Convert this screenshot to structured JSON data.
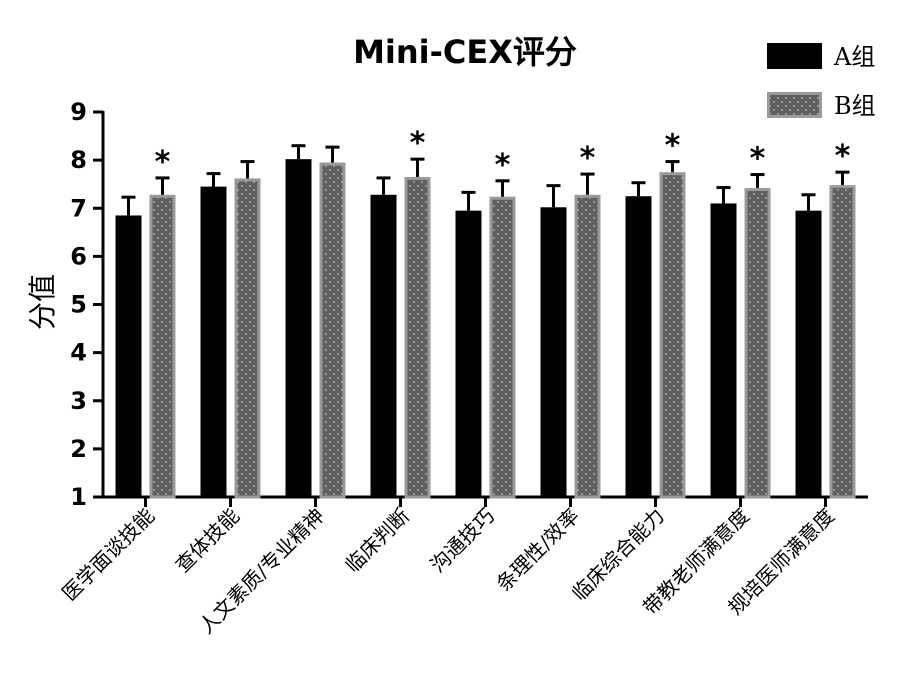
{
  "chart_data": {
    "type": "bar",
    "title": "Mini-CEX评分",
    "ylabel": "分值",
    "xlabel": "",
    "ylim": [
      1,
      9
    ],
    "yticks": [
      1,
      2,
      3,
      4,
      5,
      6,
      7,
      8,
      9
    ],
    "grid": false,
    "legend_position": "top-right",
    "categories": [
      "医学面谈技能",
      "查体技能",
      "人文素质/专业精神",
      "临床判断",
      "沟通技巧",
      "条理性/效率",
      "临床综合能力",
      "带教老师满意度",
      "规培医师满意度"
    ],
    "series": [
      {
        "name": "A组",
        "color": "#000000",
        "values": [
          6.85,
          7.45,
          8.02,
          7.28,
          6.95,
          7.02,
          7.25,
          7.1,
          6.95
        ],
        "errors": [
          0.38,
          0.27,
          0.28,
          0.35,
          0.38,
          0.45,
          0.28,
          0.33,
          0.33
        ]
      },
      {
        "name": "B组",
        "color": "#6b6b6b",
        "values": [
          7.28,
          7.62,
          7.95,
          7.65,
          7.24,
          7.28,
          7.75,
          7.42,
          7.48
        ],
        "errors": [
          0.35,
          0.35,
          0.32,
          0.37,
          0.33,
          0.43,
          0.22,
          0.28,
          0.27
        ],
        "significance": [
          "*",
          "",
          "",
          "*",
          "*",
          "*",
          "*",
          "*",
          "*"
        ]
      }
    ]
  }
}
